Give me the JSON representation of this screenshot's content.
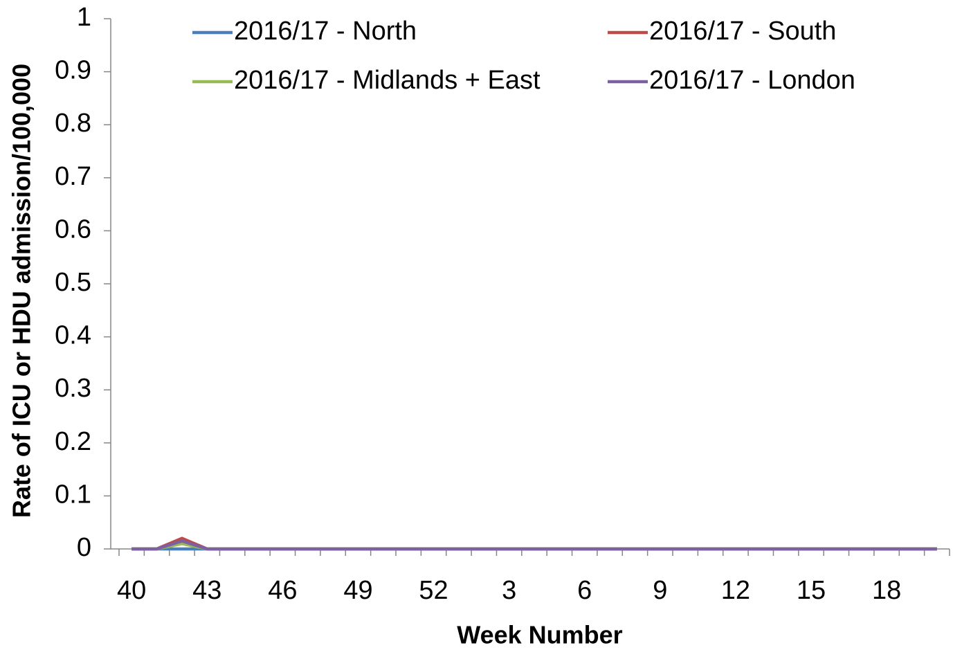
{
  "chart_data": {
    "type": "line",
    "x_label": "Week Number",
    "y_label": "Rate of ICU or HDU admission/100,000",
    "categories": [
      "40",
      null,
      null,
      "43",
      null,
      null,
      "46",
      null,
      null,
      "49",
      null,
      null,
      "52",
      null,
      null,
      "3",
      null,
      null,
      "6",
      null,
      null,
      "9",
      null,
      null,
      "12",
      null,
      null,
      "15",
      null,
      null,
      "18",
      null,
      null
    ],
    "series": [
      {
        "name": "2016/17 - North",
        "color": "#4a7ebb",
        "values": [
          0,
          0,
          0,
          0,
          0,
          0,
          0,
          0,
          0,
          0,
          0,
          0,
          0,
          0,
          0,
          0,
          0,
          0,
          0,
          0,
          0,
          0,
          0,
          0,
          0,
          0,
          0,
          0,
          0,
          0,
          0,
          0,
          0
        ]
      },
      {
        "name": "2016/17 - South",
        "color": "#be4b48",
        "values": [
          0,
          0,
          0.02,
          0,
          0,
          0,
          0,
          0,
          0,
          0,
          0,
          0,
          0,
          0,
          0,
          0,
          0,
          0,
          0,
          0,
          0,
          0,
          0,
          0,
          0,
          0,
          0,
          0,
          0,
          0,
          0,
          0,
          0
        ]
      },
      {
        "name": "2016/17 - Midlands + East",
        "color": "#98b954",
        "values": [
          0,
          0,
          0.01,
          0,
          0,
          0,
          0,
          0,
          0,
          0,
          0,
          0,
          0,
          0,
          0,
          0,
          0,
          0,
          0,
          0,
          0,
          0,
          0,
          0,
          0,
          0,
          0,
          0,
          0,
          0,
          0,
          0,
          0
        ]
      },
      {
        "name": "2016/17 - London",
        "color": "#7d60a0",
        "values": [
          0,
          0,
          0.015,
          0,
          0,
          0,
          0,
          0,
          0,
          0,
          0,
          0,
          0,
          0,
          0,
          0,
          0,
          0,
          0,
          0,
          0,
          0,
          0,
          0,
          0,
          0,
          0,
          0,
          0,
          0,
          0,
          0,
          0
        ]
      }
    ],
    "ylim": [
      0,
      1
    ],
    "yticks": [
      0,
      0.1,
      0.2,
      0.3,
      0.4,
      0.5,
      0.6,
      0.7,
      0.8,
      0.9,
      1
    ],
    "grid": false
  }
}
